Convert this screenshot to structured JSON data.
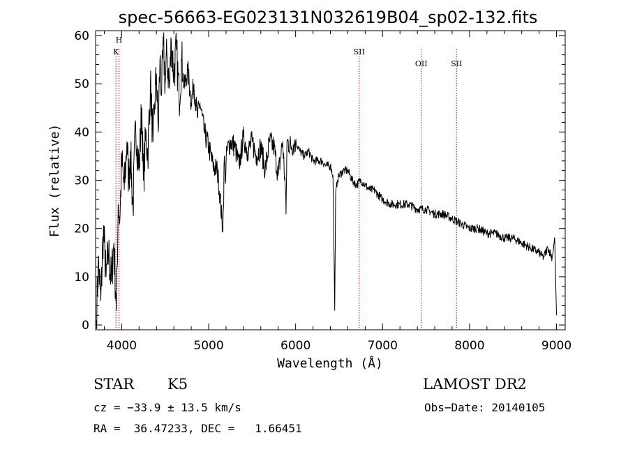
{
  "chart_data": {
    "type": "line",
    "title": "spec-56663-EG023131N032619B04_sp02-132.fits",
    "xlabel": "Wavelength (Å)",
    "ylabel": "Flux (relative)",
    "xlim": [
      3700,
      9100
    ],
    "ylim": [
      -1,
      61
    ],
    "xticks": [
      4000,
      5000,
      6000,
      7000,
      8000,
      9000
    ],
    "yticks": [
      0,
      10,
      20,
      30,
      40,
      50,
      60
    ],
    "grid": false,
    "line_color": "#000000",
    "marker_color": "#8b1a1a",
    "series": [
      {
        "x": [
          3710,
          3730,
          3760,
          3790,
          3820,
          3850,
          3880,
          3910,
          3940,
          3960,
          3980,
          4000,
          4030,
          4060,
          4080,
          4100,
          4130,
          4160,
          4200,
          4230,
          4250,
          4280,
          4300,
          4330,
          4360,
          4380,
          4400,
          4420,
          4440,
          4460,
          4480,
          4500,
          4520,
          4550,
          4570,
          4600,
          4630,
          4660,
          4690,
          4720,
          4760,
          4800,
          4830,
          4870,
          4900,
          4950,
          5000,
          5050,
          5100,
          5130,
          5160,
          5170,
          5180,
          5190,
          5210,
          5250,
          5300,
          5350,
          5400,
          5450,
          5500,
          5550,
          5600,
          5650,
          5700,
          5750,
          5800,
          5850,
          5880,
          5890,
          5900,
          5950,
          6000,
          6050,
          6100,
          6150,
          6200,
          6250,
          6300,
          6350,
          6400,
          6430,
          6450,
          6460,
          6480,
          6500,
          6550,
          6600,
          6650,
          6700,
          6750,
          6800,
          6850,
          6900,
          6950,
          7000,
          7100,
          7200,
          7300,
          7400,
          7500,
          7600,
          7700,
          7800,
          7900,
          8000,
          8100,
          8200,
          8300,
          8400,
          8500,
          8600,
          8700,
          8800,
          8850,
          8900,
          8950,
          8980,
          9000
        ],
        "values": [
          1,
          13,
          5,
          20,
          10,
          15,
          9,
          17,
          3,
          25,
          22,
          34,
          28,
          38,
          30,
          36,
          24,
          42,
          32,
          45,
          30,
          40,
          35,
          50,
          38,
          46,
          52,
          40,
          55,
          48,
          58,
          50,
          56,
          49,
          59,
          52,
          57,
          47,
          55,
          49,
          53,
          46,
          50,
          43,
          46,
          40,
          37,
          33,
          32,
          27,
          20,
          24,
          35,
          30,
          36,
          38,
          37,
          33,
          39,
          36,
          38,
          35,
          37,
          32,
          38,
          37,
          31,
          38,
          29,
          23,
          38,
          37,
          38,
          36,
          35,
          36,
          34,
          34,
          34,
          33,
          33,
          31,
          3,
          27,
          30,
          31,
          32,
          32,
          30,
          29,
          30,
          29,
          28,
          28,
          27,
          26,
          25,
          25,
          25,
          24,
          24,
          23,
          23,
          22,
          21,
          20,
          20,
          19,
          19,
          18,
          18,
          17,
          16,
          15,
          14,
          16,
          14,
          18,
          2
        ]
      }
    ],
    "line_markers": [
      {
        "label": "K",
        "x": 3934
      },
      {
        "label": "H",
        "x": 3969
      },
      {
        "label": "SII",
        "x": 6731
      },
      {
        "label": "OII",
        "x": 7445
      },
      {
        "label": "SII",
        "x": 7850
      }
    ]
  },
  "info": {
    "class": "STAR",
    "subclass": "K5",
    "survey": "LAMOST DR2",
    "cz": "cz = −33.9 ± 13.5 km/s",
    "obs_date": "Obs−Date: 20140105",
    "radec": "RA =  36.47233, DEC =   1.66451"
  }
}
